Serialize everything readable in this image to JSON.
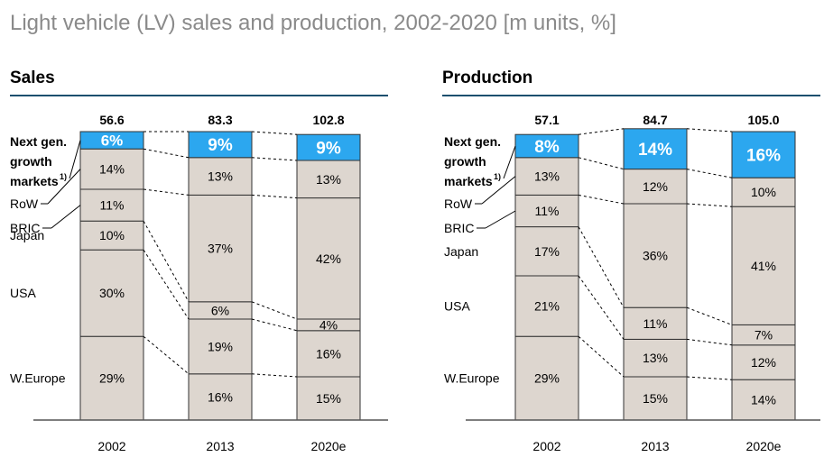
{
  "title": "Light vehicle (LV) sales and production, 2002-2020 [m units, %]",
  "colors": {
    "segment": "#ddd6cf",
    "highlight": "#2ca7ef",
    "border": "#333333",
    "rule": "#1c4f6e"
  },
  "chart_data": [
    {
      "type": "bar",
      "title": "Sales",
      "categories": [
        "2002",
        "2013",
        "2020e"
      ],
      "totals": [
        "56.6",
        "83.3",
        "102.8"
      ],
      "segments": [
        "Next gen. growth markets1)",
        "RoW",
        "BRIC",
        "Japan",
        "USA",
        "W.Europe"
      ],
      "series": [
        {
          "name": "W.Europe",
          "values": [
            29,
            16,
            15
          ],
          "labels": [
            "29%",
            "16%",
            "15%"
          ]
        },
        {
          "name": "USA",
          "values": [
            30,
            19,
            16
          ],
          "labels": [
            "30%",
            "19%",
            "16%"
          ]
        },
        {
          "name": "Japan",
          "values": [
            10,
            6,
            4
          ],
          "labels": [
            "10%",
            "6%",
            "4%"
          ]
        },
        {
          "name": "BRIC",
          "values": [
            11,
            37,
            42
          ],
          "labels": [
            "11%",
            "37%",
            "42%"
          ]
        },
        {
          "name": "RoW",
          "values": [
            14,
            13,
            13
          ],
          "labels": [
            "14%",
            "13%",
            "13%"
          ]
        },
        {
          "name": "Next gen. growth markets1)",
          "values": [
            6,
            9,
            9
          ],
          "labels": [
            "6%",
            "9%",
            "9%"
          ]
        }
      ]
    },
    {
      "type": "bar",
      "title": "Production",
      "categories": [
        "2002",
        "2013",
        "2020e"
      ],
      "totals": [
        "57.1",
        "84.7",
        "105.0"
      ],
      "segments": [
        "Next gen. growth markets1)",
        "RoW",
        "BRIC",
        "Japan",
        "USA",
        "W.Europe"
      ],
      "series": [
        {
          "name": "W.Europe",
          "values": [
            29,
            15,
            14
          ],
          "labels": [
            "29%",
            "15%",
            "14%"
          ]
        },
        {
          "name": "USA",
          "values": [
            21,
            13,
            12
          ],
          "labels": [
            "21%",
            "13%",
            "12%"
          ]
        },
        {
          "name": "Japan",
          "values": [
            17,
            11,
            7
          ],
          "labels": [
            "17%",
            "11%",
            "7%"
          ]
        },
        {
          "name": "BRIC",
          "values": [
            11,
            36,
            41
          ],
          "labels": [
            "11%",
            "36%",
            "41%"
          ]
        },
        {
          "name": "RoW",
          "values": [
            13,
            12,
            10
          ],
          "labels": [
            "13%",
            "12%",
            "10%"
          ]
        },
        {
          "name": "Next gen. growth markets1)",
          "values": [
            8,
            14,
            16
          ],
          "labels": [
            "8%",
            "14%",
            "16%"
          ]
        }
      ]
    }
  ],
  "legend_labels": {
    "next_gen_line1": "Next gen.",
    "next_gen_line2": "growth",
    "next_gen_line3": "markets",
    "footnote": "1)",
    "row": "RoW",
    "bric": "BRIC",
    "japan": "Japan",
    "usa": "USA",
    "weurope": "W.Europe"
  }
}
